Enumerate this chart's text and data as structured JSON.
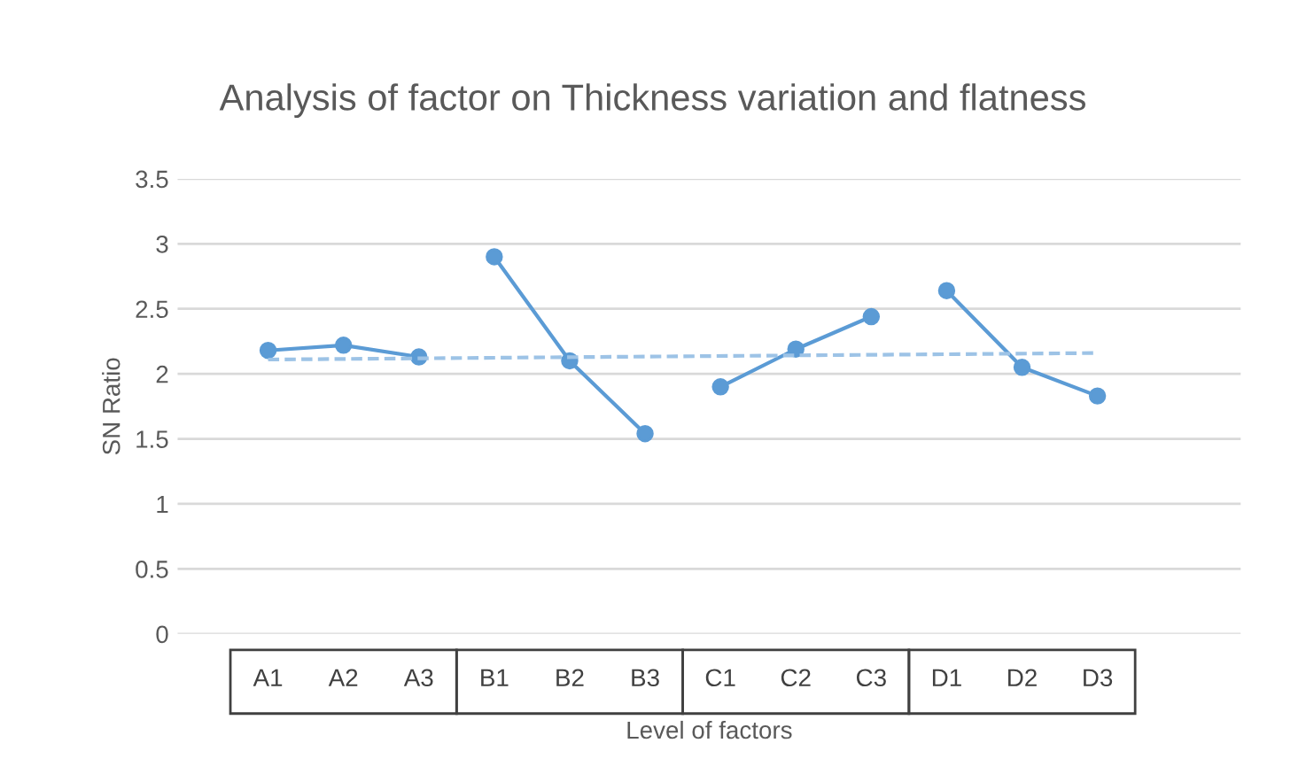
{
  "chart_data": {
    "type": "line",
    "title": "Analysis of factor on Thickness variation and flatness",
    "xlabel": "Level of factors",
    "ylabel": "SN Ratio",
    "categories": [
      "A1",
      "A2",
      "A3",
      "B1",
      "B2",
      "B3",
      "C1",
      "C2",
      "C3",
      "D1",
      "D2",
      "D3"
    ],
    "series": [
      {
        "color": "#5b9bd5",
        "values": [
          2.18,
          2.22,
          2.13,
          null,
          null,
          null,
          null,
          null,
          null,
          null,
          null,
          null
        ]
      },
      {
        "color": "#5b9bd5",
        "values": [
          null,
          null,
          null,
          2.9,
          2.1,
          1.54,
          null,
          null,
          null,
          null,
          null,
          null
        ]
      },
      {
        "color": "#5b9bd5",
        "values": [
          null,
          null,
          null,
          null,
          null,
          null,
          1.9,
          2.19,
          2.44,
          null,
          null,
          null
        ]
      },
      {
        "color": "#5b9bd5",
        "values": [
          null,
          null,
          null,
          null,
          null,
          null,
          null,
          null,
          null,
          2.64,
          2.05,
          1.83
        ]
      },
      {
        "color": "#9dc3e6",
        "x": [
          "A1",
          "D3"
        ],
        "values": [
          2.11,
          2.16
        ],
        "line_style": "dashed",
        "marker": "none"
      }
    ],
    "ylim": [
      0,
      3.5
    ],
    "yticks": [
      0,
      0.5,
      1,
      1.5,
      2,
      2.5,
      3,
      3.5
    ],
    "grid": "y",
    "marker": "circle",
    "line_style": "solid"
  }
}
